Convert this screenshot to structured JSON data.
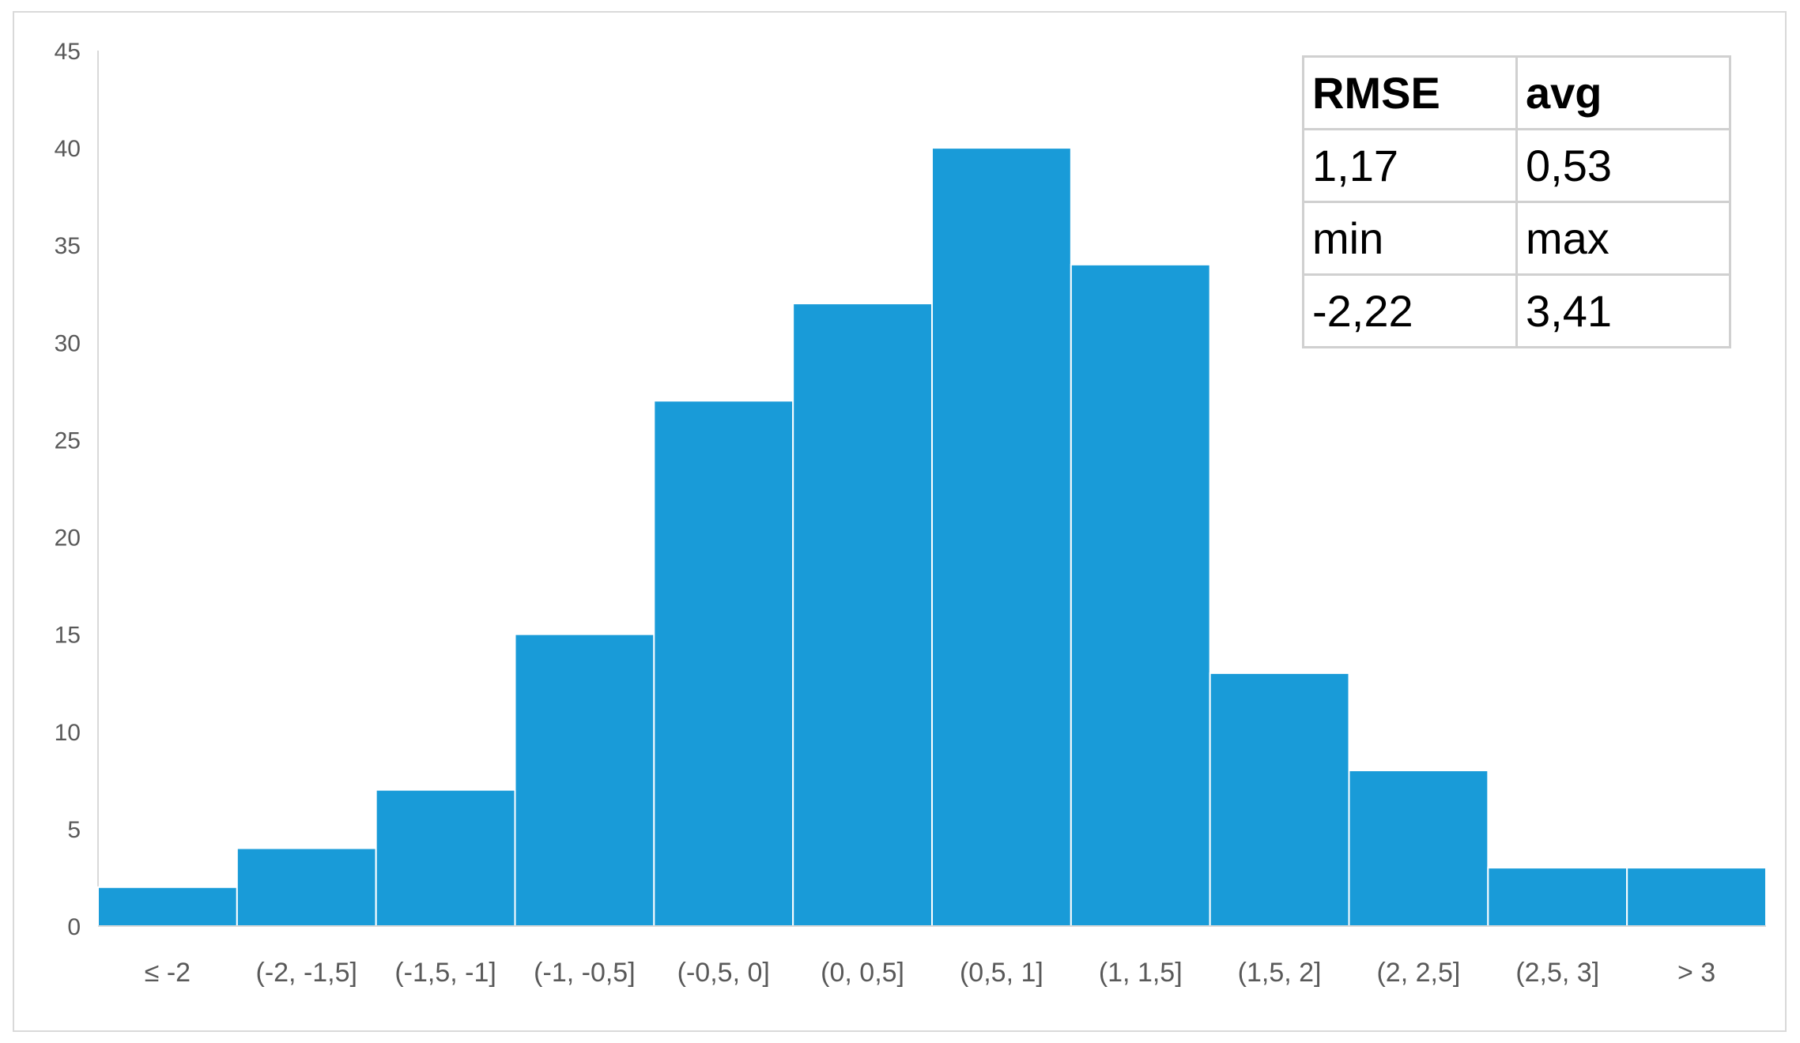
{
  "chart_data": {
    "type": "bar",
    "categories": [
      "≤ -2",
      "(-2, -1,5]",
      "(-1,5, -1]",
      "(-1, -0,5]",
      "(-0,5, 0]",
      "(0, 0,5]",
      "(0,5, 1]",
      "(1, 1,5]",
      "(1,5, 2]",
      "(2, 2,5]",
      "(2,5, 3]",
      "> 3"
    ],
    "values": [
      2,
      4,
      7,
      15,
      27,
      32,
      40,
      34,
      13,
      8,
      3,
      3
    ],
    "title": "",
    "xlabel": "",
    "ylabel": "",
    "ylim": [
      0,
      45
    ],
    "yticks": [
      "0",
      "5",
      "10",
      "15",
      "20",
      "25",
      "30",
      "35",
      "40",
      "45"
    ],
    "grid": false,
    "legend": "none",
    "bar_color": "#199bd8",
    "axis_color": "#d9d9d9",
    "tick_color": "#595959"
  },
  "stats_table": {
    "rows": [
      [
        "RMSE",
        "avg"
      ],
      [
        "1,17",
        "0,53"
      ],
      [
        "min",
        "max"
      ],
      [
        "-2,22",
        "3,41"
      ]
    ]
  }
}
